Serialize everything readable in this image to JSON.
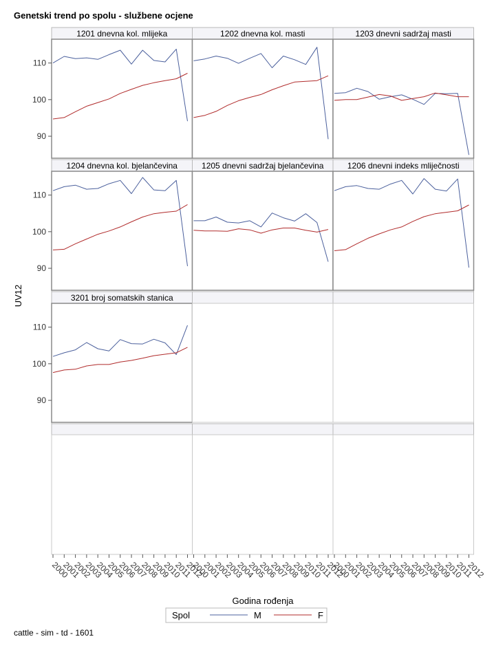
{
  "title": "Genetski trend po spolu - službene ocjene",
  "footnote": "cattle - sim - td - 1601",
  "colors": {
    "M": "#4a5f9c",
    "F": "#b02a2a"
  },
  "chart_data": {
    "type": "line",
    "title": "Genetski trend po spolu - službene ocjene",
    "xlabel": "Godina rođenja",
    "ylabel": "UV12",
    "ylim": [
      84,
      116.5
    ],
    "yticks": [
      90,
      100,
      110
    ],
    "x": [
      "2000",
      "2001",
      "2002",
      "2003",
      "2004",
      "2005",
      "2006",
      "2007",
      "2008",
      "2009",
      "2010",
      "2011",
      "2012"
    ],
    "legend": {
      "title": "Spol",
      "placement": "bottom",
      "entries": [
        "M",
        "F"
      ]
    },
    "grid": false,
    "panels": [
      {
        "label": "1201 dnevna kol. mlijeka",
        "series": [
          {
            "name": "M",
            "values": [
              110.0,
              111.8,
              111.2,
              111.4,
              111.0,
              112.3,
              113.5,
              109.7,
              113.5,
              110.7,
              110.3,
              113.8,
              94.1
            ]
          },
          {
            "name": "F",
            "values": [
              94.7,
              95.1,
              96.7,
              98.2,
              99.2,
              100.2,
              101.7,
              102.8,
              103.9,
              104.6,
              105.2,
              105.7,
              107.2
            ]
          }
        ]
      },
      {
        "label": "1202 dnevna kol. masti",
        "series": [
          {
            "name": "M",
            "values": [
              110.6,
              111.1,
              111.9,
              111.3,
              109.9,
              111.3,
              112.6,
              108.7,
              111.9,
              110.9,
              109.6,
              114.3,
              89.2
            ]
          },
          {
            "name": "F",
            "values": [
              95.1,
              95.7,
              96.8,
              98.4,
              99.7,
              100.6,
              101.4,
              102.7,
              103.8,
              104.8,
              105.0,
              105.2,
              106.5
            ]
          }
        ]
      },
      {
        "label": "1203 dnevni sadržaj masti",
        "series": [
          {
            "name": "M",
            "values": [
              101.7,
              101.9,
              103.1,
              102.2,
              100.1,
              100.8,
              101.3,
              100.1,
              98.7,
              101.7,
              101.6,
              101.7,
              84.9
            ]
          },
          {
            "name": "F",
            "values": [
              99.8,
              100.0,
              100.0,
              100.7,
              101.4,
              101.0,
              99.8,
              100.3,
              100.8,
              101.8,
              101.3,
              100.8,
              100.8
            ]
          }
        ]
      },
      {
        "label": "1204 dnevna kol. bjelančevina",
        "series": [
          {
            "name": "M",
            "values": [
              111.2,
              112.3,
              112.7,
              111.6,
              111.8,
              113.1,
              114.0,
              110.4,
              114.8,
              111.4,
              111.2,
              114.0,
              90.6
            ]
          },
          {
            "name": "F",
            "values": [
              95.0,
              95.2,
              96.7,
              98.0,
              99.3,
              100.2,
              101.3,
              102.7,
              104.0,
              104.9,
              105.3,
              105.6,
              107.4
            ]
          }
        ]
      },
      {
        "label": "1205 dnevni sadržaj bjelančevina",
        "series": [
          {
            "name": "M",
            "values": [
              103.0,
              103.0,
              104.0,
              102.6,
              102.4,
              103.0,
              101.3,
              105.1,
              103.8,
              102.9,
              104.9,
              102.5,
              91.8
            ]
          },
          {
            "name": "F",
            "values": [
              100.4,
              100.2,
              100.2,
              100.1,
              100.8,
              100.5,
              99.6,
              100.5,
              101.0,
              101.0,
              100.4,
              99.9,
              100.6
            ]
          }
        ]
      },
      {
        "label": "1206 dnevni indeks mliječnosti",
        "series": [
          {
            "name": "M",
            "values": [
              111.2,
              112.3,
              112.6,
              111.8,
              111.6,
              113.0,
              114.0,
              110.3,
              114.5,
              111.6,
              111.1,
              114.4,
              90.2
            ]
          },
          {
            "name": "F",
            "values": [
              94.8,
              95.1,
              96.7,
              98.2,
              99.4,
              100.5,
              101.3,
              102.8,
              104.1,
              104.9,
              105.3,
              105.7,
              107.3
            ]
          }
        ]
      },
      {
        "label": "3201 broj somatskih stanica",
        "series": [
          {
            "name": "M",
            "values": [
              102.0,
              103.0,
              103.8,
              105.8,
              104.1,
              103.5,
              106.6,
              105.5,
              105.4,
              106.7,
              105.7,
              102.5,
              110.5
            ]
          },
          {
            "name": "F",
            "values": [
              97.6,
              98.3,
              98.5,
              99.4,
              99.8,
              99.8,
              100.5,
              100.9,
              101.5,
              102.2,
              102.6,
              103.0,
              104.5
            ]
          }
        ]
      }
    ]
  }
}
